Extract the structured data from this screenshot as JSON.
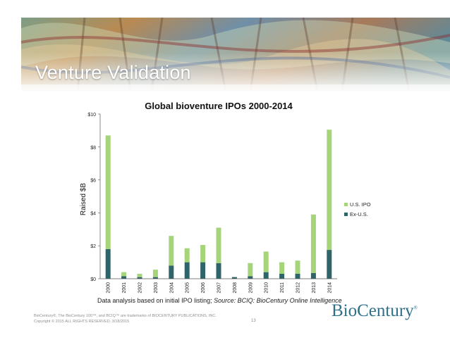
{
  "slide": {
    "title": "Venture Validation",
    "footer_line1": "BioCentury®, The BioCentury 100™, and BCIQ™ are trademarks of BIOCENTURY PUBLICATIONS, INC.",
    "footer_line2": "Copyright © 2015 ALL RIGHTS RESERVED. 3/18/2015",
    "page_number": "13",
    "brand_name": "BioCentury",
    "brand_mark": "®",
    "banner_colors": [
      "#6f9a7e",
      "#c77a3e",
      "#3f6f9a",
      "#9e4a4a",
      "#d9c08a"
    ]
  },
  "chart_data": {
    "type": "bar",
    "stacked": true,
    "title": "Global bioventure IPOs 2000-2014",
    "ylabel": "Raised $B",
    "xlabel": "",
    "ylim": [
      0,
      10
    ],
    "yticks": [
      0,
      2,
      4,
      6,
      8,
      10
    ],
    "ytick_labels": [
      "$0",
      "$2",
      "$4",
      "$6",
      "$8",
      "$10"
    ],
    "categories": [
      "2000",
      "2001",
      "2002",
      "2003",
      "2004",
      "2005",
      "2006",
      "2007",
      "2008",
      "2009",
      "2010",
      "2011",
      "2012",
      "2013",
      "2014"
    ],
    "series": [
      {
        "name": "Ex-U.S.",
        "color": "#2f6468",
        "values": [
          1.8,
          0.15,
          0.1,
          0.1,
          0.8,
          1.0,
          1.0,
          0.95,
          0.1,
          0.15,
          0.4,
          0.3,
          0.3,
          0.35,
          1.75
        ]
      },
      {
        "name": "U.S. IPO",
        "color": "#a6d47a",
        "values": [
          6.9,
          0.25,
          0.2,
          0.45,
          1.8,
          0.85,
          1.05,
          2.15,
          0.0,
          0.8,
          1.25,
          0.7,
          0.8,
          3.55,
          7.3
        ]
      }
    ],
    "legend_position": "right",
    "legend_order": [
      "U.S. IPO",
      "Ex-U.S."
    ],
    "grid": false,
    "source_prefix": "Data analysis based on initial IPO listing; ",
    "source_italic": "Source: BCIQ: BioCentury Online Intelligence"
  }
}
